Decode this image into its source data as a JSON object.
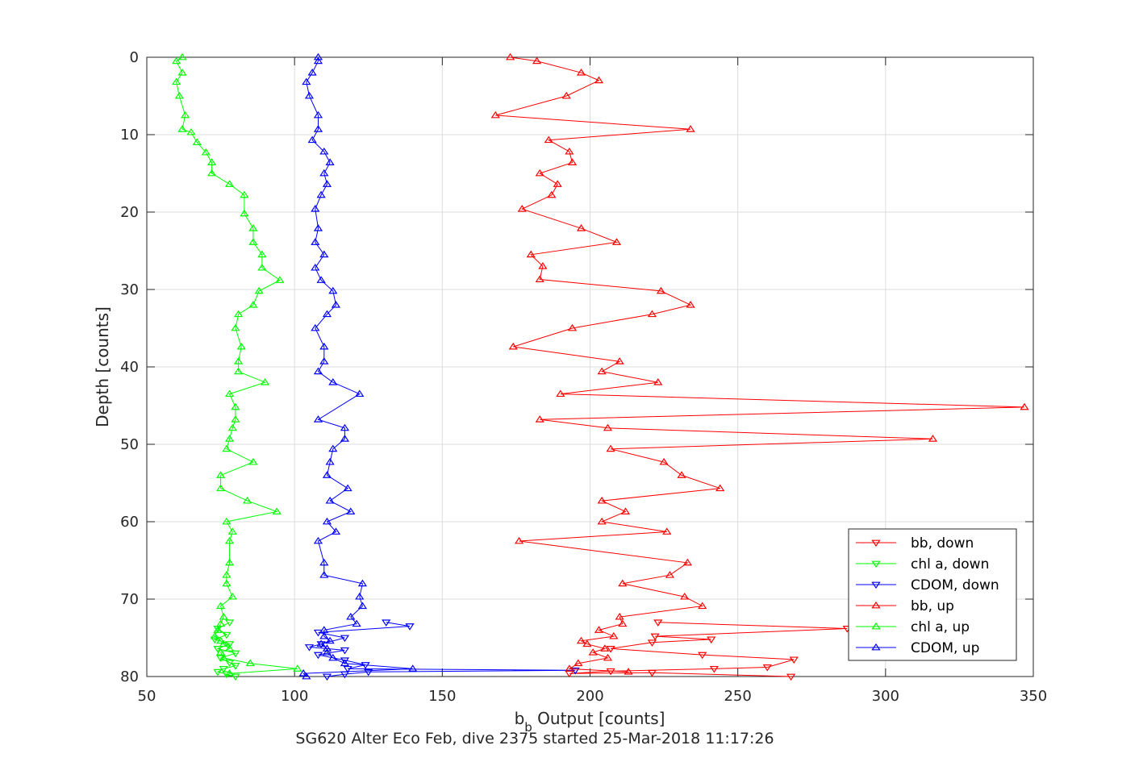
{
  "chart_data": {
    "type": "line",
    "xlabel_main": "b",
    "xlabel_sub": "b",
    "xlabel_rest": " Output [counts]",
    "ylabel": "Depth [counts]",
    "caption": "SG620 Alter Eco Feb, dive 2375 started 25-Mar-2018 11:17:26",
    "xlim": [
      50,
      350
    ],
    "ylim": [
      0,
      80
    ],
    "y_reversed": true,
    "grid": true,
    "legend_position": "bottom-right",
    "x_ticks": [
      "50",
      "100",
      "150",
      "200",
      "250",
      "300",
      "350"
    ],
    "y_ticks": [
      "0",
      "10",
      "20",
      "30",
      "40",
      "50",
      "60",
      "70",
      "80"
    ],
    "series": [
      {
        "name": "bb, down",
        "color": "#ff0000",
        "marker": "down",
        "points": [
          [
            223,
            73
          ],
          [
            287,
            73.8
          ],
          [
            222,
            74.8
          ],
          [
            241,
            75.2
          ],
          [
            221,
            75.6
          ],
          [
            207,
            76.4
          ],
          [
            238,
            77.2
          ],
          [
            269,
            77.8
          ],
          [
            260,
            78.8
          ],
          [
            242,
            79
          ],
          [
            207,
            79.3
          ],
          [
            193,
            79.6
          ],
          [
            221,
            79.5
          ],
          [
            268,
            80
          ]
        ]
      },
      {
        "name": "chl a, down",
        "color": "#00ff00",
        "marker": "down",
        "points": [
          [
            78,
            73
          ],
          [
            74,
            73.8
          ],
          [
            77,
            74.6
          ],
          [
            73,
            75.2
          ],
          [
            78,
            75.8
          ],
          [
            74,
            76.4
          ],
          [
            80,
            77
          ],
          [
            75,
            77.6
          ],
          [
            78,
            78.2
          ],
          [
            80,
            78.6
          ],
          [
            76,
            79
          ],
          [
            74,
            79.4
          ],
          [
            77,
            79.7
          ],
          [
            80,
            80
          ]
        ]
      },
      {
        "name": "CDOM, down",
        "color": "#0000ff",
        "marker": "down",
        "points": [
          [
            131,
            73
          ],
          [
            139,
            73.5
          ],
          [
            108,
            74.3
          ],
          [
            117,
            75
          ],
          [
            109,
            75.8
          ],
          [
            105,
            76.2
          ],
          [
            117,
            76.6
          ],
          [
            108,
            77.2
          ],
          [
            117,
            77.9
          ],
          [
            124,
            78.5
          ],
          [
            118,
            79
          ],
          [
            195,
            79.2
          ],
          [
            125,
            79.4
          ],
          [
            117,
            79.7
          ],
          [
            111,
            80
          ]
        ]
      },
      {
        "name": "bb, up",
        "color": "#ff0000",
        "marker": "up",
        "points": [
          [
            173,
            0
          ],
          [
            182,
            0.5
          ],
          [
            197,
            2
          ],
          [
            203,
            3
          ],
          [
            192,
            5
          ],
          [
            168,
            7.5
          ],
          [
            234,
            9.3
          ],
          [
            186,
            10.7
          ],
          [
            193,
            12.2
          ],
          [
            194,
            13.6
          ],
          [
            183,
            15
          ],
          [
            189,
            16.4
          ],
          [
            187,
            17.8
          ],
          [
            177,
            19.6
          ],
          [
            197,
            22.1
          ],
          [
            209,
            23.9
          ],
          [
            180,
            25.5
          ],
          [
            184,
            27
          ],
          [
            183,
            28.7
          ],
          [
            224,
            30.2
          ],
          [
            234,
            32
          ],
          [
            221,
            33.2
          ],
          [
            194,
            35
          ],
          [
            174,
            37.4
          ],
          [
            210,
            39.3
          ],
          [
            204,
            40.6
          ],
          [
            223,
            42
          ],
          [
            190,
            43.5
          ],
          [
            347,
            45.2
          ],
          [
            183,
            46.8
          ],
          [
            206,
            47.9
          ],
          [
            316,
            49.3
          ],
          [
            207,
            50.6
          ],
          [
            225,
            52.3
          ],
          [
            231,
            54
          ],
          [
            244,
            55.7
          ],
          [
            204,
            57.3
          ],
          [
            212,
            58.7
          ],
          [
            204,
            60
          ],
          [
            226,
            61.3
          ],
          [
            176,
            62.5
          ],
          [
            233,
            65.3
          ],
          [
            227,
            66.9
          ],
          [
            211,
            68
          ],
          [
            232,
            69.7
          ],
          [
            238,
            70.9
          ],
          [
            210,
            72.3
          ],
          [
            211,
            73.2
          ],
          [
            203,
            74
          ],
          [
            208,
            74.8
          ],
          [
            197,
            75.4
          ],
          [
            199,
            75.8
          ],
          [
            205,
            76.4
          ],
          [
            201,
            76.9
          ],
          [
            206,
            77.6
          ],
          [
            196,
            78.3
          ],
          [
            193,
            79
          ],
          [
            213,
            79.4
          ]
        ]
      },
      {
        "name": "chl a, up",
        "color": "#00ff00",
        "marker": "up",
        "points": [
          [
            62,
            0
          ],
          [
            60,
            0.5
          ],
          [
            62,
            2
          ],
          [
            60,
            3.2
          ],
          [
            61,
            5
          ],
          [
            63,
            7.5
          ],
          [
            62,
            9.3
          ],
          [
            65,
            9.7
          ],
          [
            67,
            11
          ],
          [
            70,
            12.3
          ],
          [
            72,
            13.6
          ],
          [
            72,
            15
          ],
          [
            78,
            16.4
          ],
          [
            83,
            17.8
          ],
          [
            83,
            20.2
          ],
          [
            86,
            22.1
          ],
          [
            86,
            23.9
          ],
          [
            89,
            25.5
          ],
          [
            89,
            27.2
          ],
          [
            95,
            28.8
          ],
          [
            88,
            30.2
          ],
          [
            86,
            32
          ],
          [
            81,
            33.2
          ],
          [
            80,
            35
          ],
          [
            82,
            37.4
          ],
          [
            81,
            39.3
          ],
          [
            81,
            40.6
          ],
          [
            90,
            42
          ],
          [
            78,
            43.5
          ],
          [
            80,
            45.2
          ],
          [
            80,
            46.8
          ],
          [
            79,
            47.9
          ],
          [
            78,
            49.3
          ],
          [
            77,
            50.6
          ],
          [
            86,
            52.3
          ],
          [
            75,
            54
          ],
          [
            75,
            55.7
          ],
          [
            84,
            57.3
          ],
          [
            94,
            58.7
          ],
          [
            77,
            60
          ],
          [
            79,
            61.3
          ],
          [
            78,
            62.5
          ],
          [
            78,
            65.3
          ],
          [
            77,
            66.9
          ],
          [
            77,
            68
          ],
          [
            79,
            69.7
          ],
          [
            75,
            70.9
          ],
          [
            76,
            72.3
          ],
          [
            75,
            73.2
          ],
          [
            74,
            74
          ],
          [
            73,
            74.8
          ],
          [
            75,
            75.4
          ],
          [
            76,
            75.8
          ],
          [
            78,
            76.4
          ],
          [
            75,
            76.9
          ],
          [
            76,
            77.6
          ],
          [
            85,
            78.3
          ],
          [
            101,
            79
          ],
          [
            78,
            79.6
          ]
        ]
      },
      {
        "name": "CDOM, up",
        "color": "#0000ff",
        "marker": "up",
        "points": [
          [
            108,
            0
          ],
          [
            108,
            0.5
          ],
          [
            106,
            2
          ],
          [
            104,
            3.2
          ],
          [
            105,
            5
          ],
          [
            108,
            7.5
          ],
          [
            108,
            9.3
          ],
          [
            106,
            10.7
          ],
          [
            110,
            12.2
          ],
          [
            112,
            13.6
          ],
          [
            110,
            15
          ],
          [
            111,
            16.4
          ],
          [
            109,
            17.8
          ],
          [
            107,
            19.6
          ],
          [
            108,
            22.1
          ],
          [
            107,
            23.9
          ],
          [
            110,
            25.5
          ],
          [
            107,
            27.2
          ],
          [
            109,
            28.8
          ],
          [
            113,
            30.2
          ],
          [
            114,
            32
          ],
          [
            111,
            33.2
          ],
          [
            107,
            35
          ],
          [
            110,
            37.4
          ],
          [
            110,
            39.3
          ],
          [
            108,
            40.6
          ],
          [
            113,
            42
          ],
          [
            122,
            43.5
          ],
          [
            108,
            46.8
          ],
          [
            117,
            47.9
          ],
          [
            117,
            49.3
          ],
          [
            113,
            50.6
          ],
          [
            112,
            52.3
          ],
          [
            111,
            54
          ],
          [
            118,
            55.7
          ],
          [
            112,
            57.3
          ],
          [
            119,
            58.7
          ],
          [
            111,
            60
          ],
          [
            114,
            61.3
          ],
          [
            108,
            62.5
          ],
          [
            110,
            65.3
          ],
          [
            110,
            66.9
          ],
          [
            123,
            68
          ],
          [
            122,
            69.7
          ],
          [
            123,
            70.9
          ],
          [
            119,
            72.3
          ],
          [
            121,
            73.2
          ],
          [
            110,
            74
          ],
          [
            110,
            74.8
          ],
          [
            112,
            75.4
          ],
          [
            109,
            75.8
          ],
          [
            111,
            76.4
          ],
          [
            111,
            76.9
          ],
          [
            113,
            77.6
          ],
          [
            117,
            78.3
          ],
          [
            140,
            79
          ],
          [
            103,
            79.6
          ],
          [
            104,
            80
          ]
        ]
      }
    ]
  }
}
